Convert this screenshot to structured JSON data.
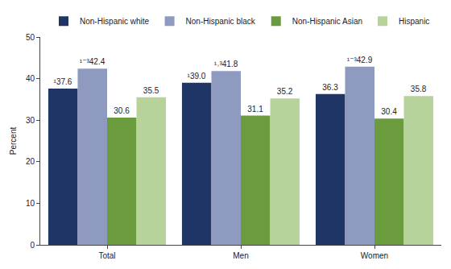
{
  "chart_data": {
    "type": "bar",
    "categories": [
      "Total",
      "Men",
      "Women"
    ],
    "y_label": "Percent",
    "ylim": [
      0,
      50
    ],
    "yticks": [
      0,
      10,
      20,
      30,
      40,
      50
    ],
    "grid": false,
    "legend": "top",
    "data_labels": true,
    "series": [
      {
        "name": "Non-Hispanic white",
        "color": "#1f3566",
        "values": [
          37.6,
          39.0,
          36.3
        ],
        "value_labels": [
          "¹37.6",
          "¹39.0",
          "36.3"
        ]
      },
      {
        "name": "Non-Hispanic black",
        "color": "#8e9ac0",
        "values": [
          42.4,
          41.8,
          42.9
        ],
        "value_labels": [
          "¹⁻³42.4",
          "¹˒³41.8",
          "¹⁻³42.9"
        ]
      },
      {
        "name": "Non-Hispanic Asian",
        "color": "#6a9b3c",
        "values": [
          30.6,
          31.1,
          30.4
        ],
        "value_labels": [
          "30.6",
          "31.1",
          "30.4"
        ]
      },
      {
        "name": "Hispanic",
        "color": "#b7d39b",
        "values": [
          35.5,
          35.2,
          35.8
        ],
        "value_labels": [
          "35.5",
          "35.2",
          "35.8"
        ]
      }
    ]
  }
}
